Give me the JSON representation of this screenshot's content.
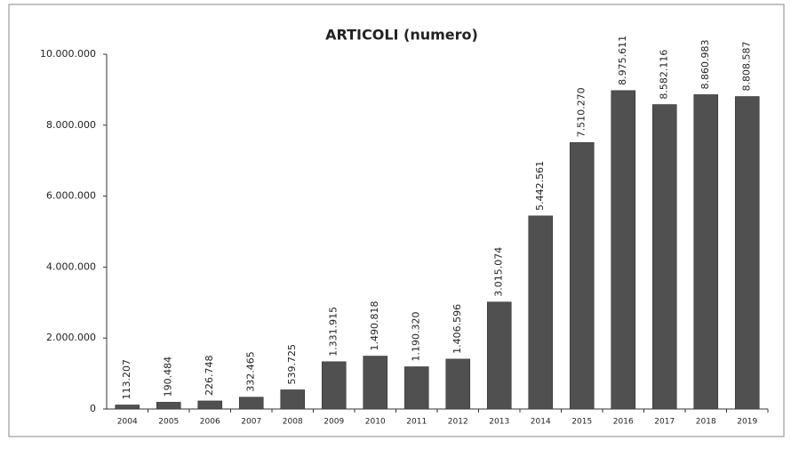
{
  "chart_data": {
    "type": "bar",
    "title": "ARTICOLI (numero)",
    "categories": [
      "2004",
      "2005",
      "2006",
      "2007",
      "2008",
      "2009",
      "2010",
      "2011",
      "2012",
      "2013",
      "2014",
      "2015",
      "2016",
      "2017",
      "2018",
      "2019"
    ],
    "values": [
      113207,
      190484,
      226748,
      332465,
      539725,
      1331915,
      1490818,
      1190320,
      1406596,
      3015074,
      5442561,
      7510270,
      8975611,
      8582116,
      8860983,
      8808587
    ],
    "value_labels": [
      "113.207",
      "190.484",
      "226.748",
      "332.465",
      "539.725",
      "1.331.915",
      "1.490.818",
      "1.190.320",
      "1.406.596",
      "3.015.074",
      "5.442.561",
      "7.510.270",
      "8.975.611",
      "8.582.116",
      "8.860.983",
      "8.808.587"
    ],
    "color": "#505050",
    "ylim": [
      0,
      10000000
    ],
    "yticks": [
      0,
      {
        "value": 2000000,
        "label": "2.000.000"
      },
      {
        "value": 4000000,
        "label": "4.000.000"
      },
      {
        "value": 6000000,
        "label": "6.000.000"
      },
      {
        "value": 8000000,
        "label": "8.000.000"
      },
      {
        "value": 10000000,
        "label": "10.000.000"
      }
    ],
    "grid": false
  }
}
